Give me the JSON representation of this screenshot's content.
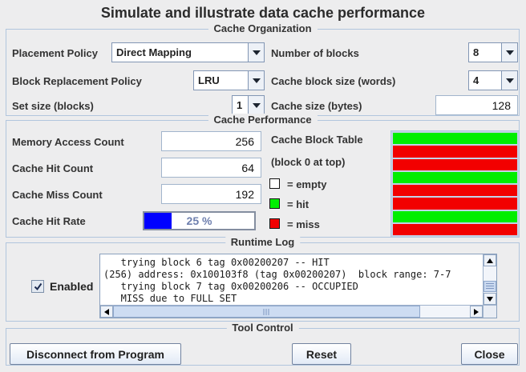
{
  "window": {
    "title": "Simulate and illustrate data cache performance"
  },
  "colors": {
    "accent_blue": "#0000ff",
    "hit_green": "#00ee00",
    "miss_red": "#f20000",
    "empty_white": "#ffffff",
    "panel_border": "#b1c5dd"
  },
  "cache_organization": {
    "title": "Cache Organization",
    "placement_policy": {
      "label": "Placement Policy",
      "value": "Direct Mapping"
    },
    "block_replacement_policy": {
      "label": "Block Replacement Policy",
      "value": "LRU"
    },
    "set_size": {
      "label": "Set size (blocks)",
      "value": "1"
    },
    "number_of_blocks": {
      "label": "Number of blocks",
      "value": "8"
    },
    "cache_block_size": {
      "label": "Cache block size (words)",
      "value": "4"
    },
    "cache_size": {
      "label": "Cache size (bytes)",
      "value": "128"
    }
  },
  "cache_performance": {
    "title": "Cache Performance",
    "memory_access_count": {
      "label": "Memory Access Count",
      "value": "256"
    },
    "cache_hit_count": {
      "label": "Cache Hit Count",
      "value": "64"
    },
    "cache_miss_count": {
      "label": "Cache Miss Count",
      "value": "192"
    },
    "cache_hit_rate": {
      "label": "Cache Hit Rate",
      "value": "25 %",
      "percent": 25
    },
    "block_table": {
      "label": "Cache Block Table",
      "sublabel": "(block 0 at top)",
      "legend": [
        {
          "swatch": "empty",
          "color": "#ffffff",
          "label": "= empty"
        },
        {
          "swatch": "hit",
          "color": "#00ee00",
          "label": "= hit"
        },
        {
          "swatch": "miss",
          "color": "#f20000",
          "label": "= miss"
        }
      ],
      "blocks": [
        "hit",
        "miss",
        "miss",
        "hit",
        "miss",
        "miss",
        "hit",
        "miss"
      ]
    }
  },
  "runtime_log": {
    "title": "Runtime Log",
    "enabled_label": "Enabled",
    "enabled_checked": true,
    "lines": [
      "   trying block 6 tag 0x00200207 -- HIT",
      "(256) address: 0x100103f8 (tag 0x00200207)  block range: 7-7",
      "   trying block 7 tag 0x00200206 -- OCCUPIED",
      "   MISS due to FULL SET"
    ]
  },
  "tool_control": {
    "title": "Tool Control",
    "buttons": [
      {
        "label": "Disconnect from Program"
      },
      {
        "label": "Reset"
      },
      {
        "label": "Close"
      }
    ]
  }
}
